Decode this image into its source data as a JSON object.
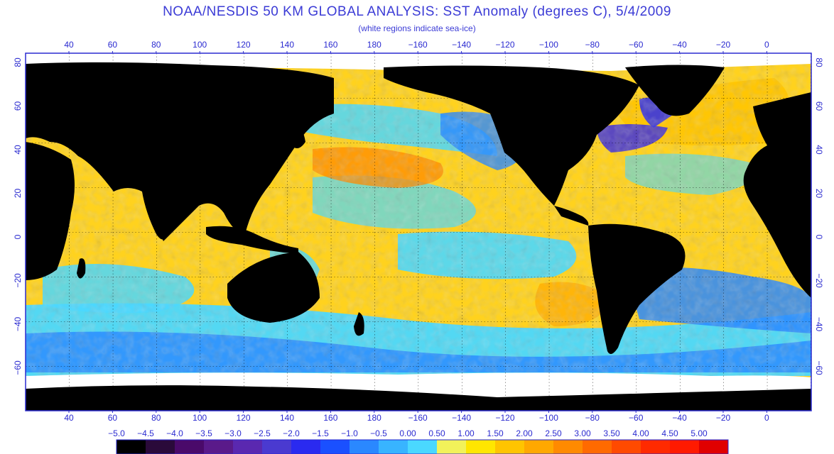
{
  "title": "NOAA/NESDIS 50 KM GLOBAL ANALYSIS: SST Anomaly (degrees C), 5/4/2009",
  "subtitle": "(white regions indicate sea-ice)",
  "axes": {
    "lon_labels": [
      "40",
      "60",
      "80",
      "100",
      "120",
      "140",
      "160",
      "180",
      "−160",
      "−140",
      "−120",
      "−100",
      "−80",
      "−60",
      "−40",
      "−20",
      "0"
    ],
    "lat_labels": [
      "80",
      "60",
      "40",
      "20",
      "0",
      "−20",
      "−40",
      "−60"
    ]
  },
  "colorbar": {
    "labels": [
      "−5.0",
      "−4.5",
      "−4.0",
      "−3.5",
      "−3.0",
      "−2.5",
      "−2.0",
      "−1.5",
      "−1.0",
      "−0.5",
      "0.00",
      "0.50",
      "1.00",
      "1.50",
      "2.00",
      "2.50",
      "3.00",
      "3.50",
      "4.00",
      "4.50",
      "5.00"
    ],
    "colors": [
      "#000000",
      "#2a0a3a",
      "#4a0a6a",
      "#5a1a8a",
      "#5a28b0",
      "#4a3ad0",
      "#2a2af0",
      "#1a50ff",
      "#2a88ff",
      "#38b4ff",
      "#4ad8ff",
      "#f2f25a",
      "#ffe600",
      "#ffc400",
      "#ffa800",
      "#ff8a00",
      "#ff6a00",
      "#ff4a00",
      "#ff2a00",
      "#ff1a00",
      "#e00000"
    ]
  },
  "colors": {
    "land": "#000000",
    "ice": "#ffffff",
    "frame": "#2a2ad0",
    "ocean_base": "#ffd21e"
  }
}
